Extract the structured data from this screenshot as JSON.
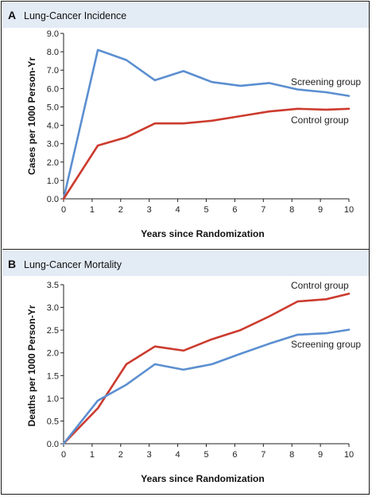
{
  "chart_data": [
    {
      "type": "line",
      "panel_letter": "A",
      "title": "Lung-Cancer Incidence",
      "xlabel": "Years since Randomization",
      "ylabel": "Cases per 1000 Person-Yr",
      "xlim": [
        0,
        10
      ],
      "ylim": [
        0,
        9
      ],
      "x_ticks": [
        "0",
        "1",
        "2",
        "3",
        "4",
        "5",
        "6",
        "7",
        "8",
        "9",
        "10"
      ],
      "y_ticks": [
        "0.0",
        "1.0",
        "2.0",
        "3.0",
        "4.0",
        "5.0",
        "6.0",
        "7.0",
        "8.0",
        "9.0"
      ],
      "grid": false,
      "series": [
        {
          "name": "Screening group",
          "color": "#5b8fd0",
          "x": [
            0,
            1.2,
            2.2,
            3.2,
            4.2,
            5.2,
            6.2,
            7.2,
            8.2,
            9.2,
            10
          ],
          "values": [
            0,
            8.1,
            7.55,
            6.45,
            6.95,
            6.35,
            6.15,
            6.3,
            5.95,
            5.8,
            5.6
          ]
        },
        {
          "name": "Control group",
          "color": "#cc3b2e",
          "x": [
            0,
            1.2,
            2.2,
            3.2,
            4.2,
            5.2,
            6.2,
            7.2,
            8.2,
            9.2,
            10
          ],
          "values": [
            0,
            2.9,
            3.35,
            4.1,
            4.1,
            4.25,
            4.5,
            4.75,
            4.9,
            4.85,
            4.9
          ]
        }
      ]
    },
    {
      "type": "line",
      "panel_letter": "B",
      "title": "Lung-Cancer Mortality",
      "xlabel": "Years since Randomization",
      "ylabel": "Deaths per 1000 Person-Yr",
      "xlim": [
        0,
        10
      ],
      "ylim": [
        0,
        3.5
      ],
      "x_ticks": [
        "0",
        "1",
        "2",
        "3",
        "4",
        "5",
        "6",
        "7",
        "8",
        "9",
        "10"
      ],
      "y_ticks": [
        "0.0",
        "0.5",
        "1.0",
        "1.5",
        "2.0",
        "2.5",
        "3.0",
        "3.5"
      ],
      "grid": false,
      "series": [
        {
          "name": "Control group",
          "color": "#cc3b2e",
          "x": [
            0,
            1.2,
            2.2,
            3.2,
            4.2,
            5.2,
            6.2,
            7.2,
            8.2,
            9.2,
            10
          ],
          "values": [
            0,
            0.78,
            1.75,
            2.14,
            2.05,
            2.3,
            2.5,
            2.8,
            3.13,
            3.18,
            3.3
          ]
        },
        {
          "name": "Screening group",
          "color": "#5b8fd0",
          "x": [
            0,
            1.2,
            2.2,
            3.2,
            4.2,
            5.2,
            6.2,
            7.2,
            8.2,
            9.2,
            10
          ],
          "values": [
            0,
            0.95,
            1.3,
            1.75,
            1.63,
            1.75,
            1.98,
            2.2,
            2.4,
            2.43,
            2.51
          ]
        }
      ]
    }
  ]
}
